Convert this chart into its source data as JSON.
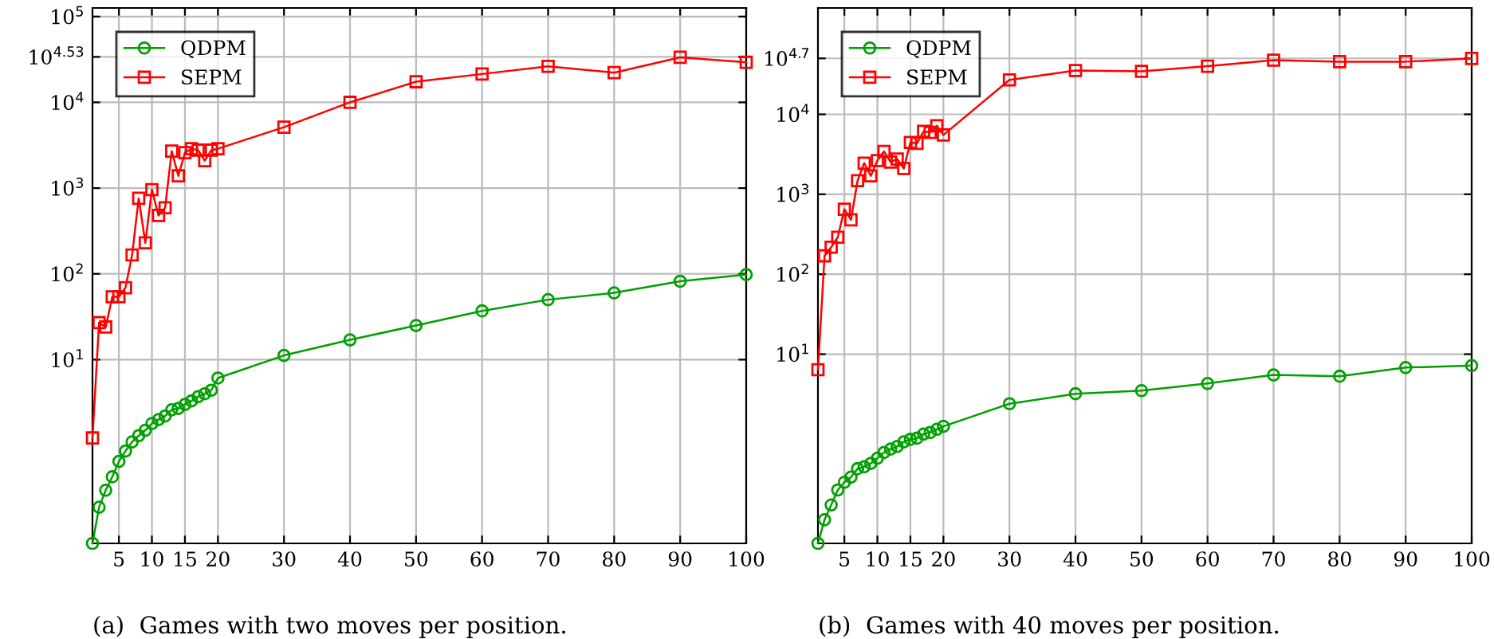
{
  "chart_data": [
    {
      "type": "line",
      "log": "y",
      "grid": true,
      "legend": "top left",
      "line_style": "solid",
      "xlim": [
        1,
        100
      ],
      "xticks": [
        5,
        10,
        15,
        20,
        30,
        40,
        50,
        60,
        70,
        80,
        90,
        100
      ],
      "ylim": [
        0.072,
        126000
      ],
      "yticks": [
        {
          "value": 10,
          "label": "10$^{1}$"
        },
        {
          "value": 100,
          "label": "10$^{2}$"
        },
        {
          "value": 1000,
          "label": "10$^{3}$"
        },
        {
          "value": 10000,
          "label": "10$^{4}$"
        },
        {
          "value": 33884,
          "label": "10$^{4.53}$"
        },
        {
          "value": 100000,
          "label": "10$^{5}$"
        }
      ],
      "x": [
        1,
        2,
        3,
        4,
        5,
        6,
        7,
        8,
        9,
        10,
        11,
        12,
        13,
        14,
        15,
        16,
        17,
        18,
        19,
        20,
        30,
        40,
        50,
        60,
        70,
        80,
        90,
        100
      ],
      "series": [
        {
          "name": "QDPM",
          "color": "#00a000",
          "marker": "circle",
          "values": [
            0.072,
            0.19,
            0.3,
            0.43,
            0.65,
            0.86,
            1.1,
            1.3,
            1.5,
            1.8,
            2.0,
            2.2,
            2.6,
            2.7,
            3.0,
            3.3,
            3.7,
            4.0,
            4.4,
            6.1,
            11.2,
            17,
            25,
            37,
            50,
            60,
            82,
            98
          ]
        },
        {
          "name": "SEPM",
          "color": "#ff0000",
          "marker": "square",
          "values": [
            1.22,
            27,
            24,
            54,
            54,
            69,
            166,
            760,
            230,
            960,
            480,
            590,
            2700,
            1390,
            2590,
            2880,
            2770,
            2090,
            2770,
            2880,
            5130,
            10000,
            17400,
            21400,
            26300,
            22200,
            33500,
            29300
          ]
        }
      ],
      "annotations": [
        "(a)  Games with two moves per position."
      ]
    },
    {
      "type": "line",
      "log": "y",
      "grid": true,
      "legend": "top left",
      "line_style": "solid",
      "xlim": [
        1,
        100
      ],
      "xticks": [
        5,
        10,
        15,
        20,
        30,
        40,
        50,
        60,
        70,
        80,
        90,
        100
      ],
      "ylim": [
        0.043,
        214000
      ],
      "yticks": [
        {
          "value": 10,
          "label": "10$^{1}$"
        },
        {
          "value": 100,
          "label": "10$^{2}$"
        },
        {
          "value": 1000,
          "label": "10$^{3}$"
        },
        {
          "value": 10000,
          "label": "10$^{4}$"
        },
        {
          "value": 50119,
          "label": "10$^{4.7}$"
        }
      ],
      "x": [
        1,
        2,
        3,
        4,
        5,
        6,
        7,
        8,
        9,
        10,
        11,
        12,
        13,
        14,
        15,
        16,
        17,
        18,
        19,
        20,
        30,
        40,
        50,
        60,
        70,
        80,
        90,
        100
      ],
      "series": [
        {
          "name": "QDPM",
          "color": "#00a000",
          "marker": "circle",
          "values": [
            0.043,
            0.085,
            0.13,
            0.2,
            0.25,
            0.29,
            0.37,
            0.39,
            0.43,
            0.5,
            0.59,
            0.65,
            0.7,
            0.8,
            0.86,
            0.89,
            1.0,
            1.05,
            1.15,
            1.25,
            2.4,
            3.2,
            3.5,
            4.3,
            5.5,
            5.3,
            6.8,
            7.2
          ]
        },
        {
          "name": "SEPM",
          "color": "#ff0000",
          "marker": "square",
          "values": [
            6.4,
            170,
            218,
            290,
            650,
            480,
            1480,
            2450,
            1700,
            2640,
            3440,
            2530,
            2760,
            2100,
            4450,
            4340,
            6140,
            5940,
            7200,
            5520,
            27000,
            35300,
            34500,
            40000,
            47600,
            45600,
            45600,
            50000
          ]
        }
      ],
      "annotations": [
        "(b)  Games with 40 moves per position."
      ]
    }
  ]
}
